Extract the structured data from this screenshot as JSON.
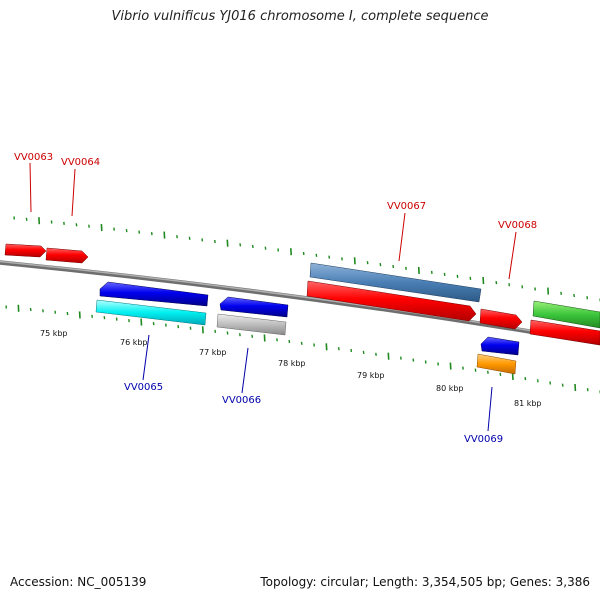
{
  "header": {
    "title": "Vibrio vulnificus YJ016 chromosome I, complete sequence"
  },
  "footer": {
    "accession": "Accession: NC_005139",
    "summary": "Topology: circular; Length: 3,354,505 bp; Genes: 3,386"
  },
  "colors": {
    "backbone": "#888888",
    "tick": "#1f8a1f",
    "forward_label": "#cc0000",
    "reverse_label": "#0000aa"
  },
  "tick_labels": [
    "75 kbp",
    "76 kbp",
    "77 kbp",
    "78 kbp",
    "79 kbp",
    "80 kbp",
    "81 kbp"
  ],
  "genes": [
    {
      "id": "VV0063",
      "color": "#ff1a1a",
      "strand": "+"
    },
    {
      "id": "VV0064",
      "color": "#ff1a1a",
      "strand": "+"
    },
    {
      "id": "VV0065",
      "color": "#0a0ae6",
      "strand": "-"
    },
    {
      "id": "VV0066",
      "color": "#0a0ae6",
      "strand": "-"
    },
    {
      "id": "VV0067",
      "color": "#ff1a1a",
      "strand": "+"
    },
    {
      "id": "VV0068",
      "color": "#ff1a1a",
      "strand": "+"
    },
    {
      "id": "VV0069",
      "color": "#0a0ae6",
      "strand": "-"
    }
  ]
}
